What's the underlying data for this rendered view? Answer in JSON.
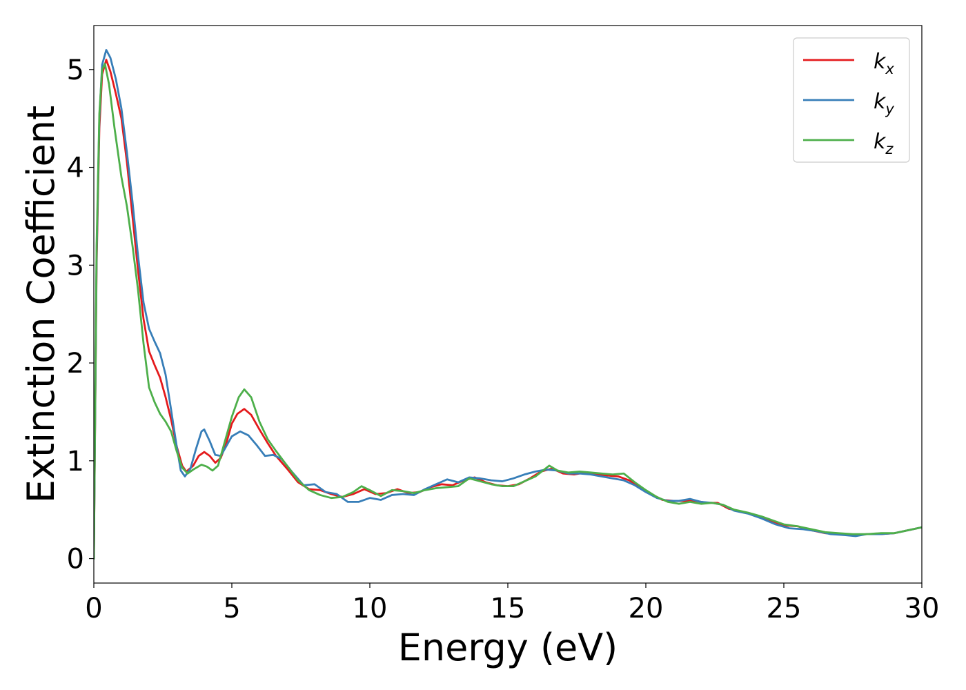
{
  "chart_data": {
    "type": "line",
    "title": "",
    "xlabel": "Energy (eV)",
    "ylabel": "Extinction Coefficient",
    "xlim": [
      0,
      30
    ],
    "ylim": [
      -0.25,
      5.45
    ],
    "xticks": [
      0,
      5,
      10,
      15,
      20,
      25,
      30
    ],
    "xtick_labels": [
      "0",
      "5",
      "10",
      "15",
      "20",
      "25",
      "30"
    ],
    "yticks": [
      0,
      1,
      2,
      3,
      4,
      5
    ],
    "ytick_labels": [
      "0",
      "1",
      "2",
      "3",
      "4",
      "5"
    ],
    "grid": false,
    "legend": {
      "position": "top-right"
    },
    "series": [
      {
        "name": "k",
        "subscript": "x",
        "color": "#e41a1c",
        "points": [
          [
            0,
            0
          ],
          [
            0.1,
            3.0
          ],
          [
            0.2,
            4.4
          ],
          [
            0.3,
            4.95
          ],
          [
            0.45,
            5.1
          ],
          [
            0.6,
            4.98
          ],
          [
            0.8,
            4.75
          ],
          [
            1.0,
            4.5
          ],
          [
            1.2,
            4.05
          ],
          [
            1.4,
            3.5
          ],
          [
            1.6,
            2.95
          ],
          [
            1.8,
            2.45
          ],
          [
            2.0,
            2.12
          ],
          [
            2.2,
            1.98
          ],
          [
            2.4,
            1.85
          ],
          [
            2.6,
            1.65
          ],
          [
            2.8,
            1.42
          ],
          [
            3.0,
            1.15
          ],
          [
            3.2,
            0.95
          ],
          [
            3.35,
            0.89
          ],
          [
            3.6,
            0.95
          ],
          [
            3.8,
            1.05
          ],
          [
            4.0,
            1.09
          ],
          [
            4.2,
            1.05
          ],
          [
            4.4,
            0.98
          ],
          [
            4.6,
            1.03
          ],
          [
            4.8,
            1.18
          ],
          [
            5.0,
            1.38
          ],
          [
            5.2,
            1.48
          ],
          [
            5.45,
            1.53
          ],
          [
            5.7,
            1.47
          ],
          [
            6.0,
            1.32
          ],
          [
            6.3,
            1.18
          ],
          [
            6.6,
            1.05
          ],
          [
            7.0,
            0.92
          ],
          [
            7.4,
            0.78
          ],
          [
            7.8,
            0.71
          ],
          [
            8.2,
            0.7
          ],
          [
            8.6,
            0.66
          ],
          [
            9.0,
            0.63
          ],
          [
            9.4,
            0.66
          ],
          [
            9.8,
            0.71
          ],
          [
            10.2,
            0.66
          ],
          [
            10.6,
            0.67
          ],
          [
            11.0,
            0.71
          ],
          [
            11.4,
            0.67
          ],
          [
            11.8,
            0.68
          ],
          [
            12.2,
            0.73
          ],
          [
            12.6,
            0.76
          ],
          [
            13.0,
            0.75
          ],
          [
            13.4,
            0.8
          ],
          [
            13.8,
            0.83
          ],
          [
            14.2,
            0.78
          ],
          [
            14.6,
            0.75
          ],
          [
            15.0,
            0.74
          ],
          [
            15.4,
            0.76
          ],
          [
            15.8,
            0.82
          ],
          [
            16.2,
            0.89
          ],
          [
            16.6,
            0.92
          ],
          [
            17.0,
            0.87
          ],
          [
            17.4,
            0.86
          ],
          [
            17.8,
            0.88
          ],
          [
            18.2,
            0.86
          ],
          [
            18.6,
            0.85
          ],
          [
            19.0,
            0.84
          ],
          [
            19.4,
            0.8
          ],
          [
            19.8,
            0.73
          ],
          [
            20.2,
            0.66
          ],
          [
            20.6,
            0.6
          ],
          [
            21.0,
            0.59
          ],
          [
            21.4,
            0.59
          ],
          [
            21.8,
            0.59
          ],
          [
            22.2,
            0.57
          ],
          [
            22.6,
            0.57
          ],
          [
            23.0,
            0.51
          ],
          [
            23.5,
            0.48
          ],
          [
            24.0,
            0.44
          ],
          [
            24.5,
            0.39
          ],
          [
            25.0,
            0.34
          ],
          [
            25.5,
            0.33
          ],
          [
            26.0,
            0.29
          ],
          [
            26.5,
            0.26
          ],
          [
            27.0,
            0.25
          ],
          [
            27.5,
            0.24
          ],
          [
            28.0,
            0.25
          ],
          [
            28.5,
            0.25
          ],
          [
            29.0,
            0.26
          ],
          [
            29.5,
            0.29
          ],
          [
            30.0,
            0.32
          ]
        ]
      },
      {
        "name": "k",
        "subscript": "y",
        "color": "#377eb8",
        "points": [
          [
            0,
            0
          ],
          [
            0.1,
            3.1
          ],
          [
            0.2,
            4.5
          ],
          [
            0.3,
            5.05
          ],
          [
            0.45,
            5.2
          ],
          [
            0.6,
            5.12
          ],
          [
            0.8,
            4.9
          ],
          [
            1.0,
            4.6
          ],
          [
            1.2,
            4.15
          ],
          [
            1.4,
            3.65
          ],
          [
            1.6,
            3.1
          ],
          [
            1.8,
            2.62
          ],
          [
            2.0,
            2.35
          ],
          [
            2.2,
            2.22
          ],
          [
            2.4,
            2.1
          ],
          [
            2.6,
            1.88
          ],
          [
            2.8,
            1.52
          ],
          [
            3.0,
            1.15
          ],
          [
            3.15,
            0.9
          ],
          [
            3.3,
            0.84
          ],
          [
            3.5,
            0.92
          ],
          [
            3.7,
            1.12
          ],
          [
            3.9,
            1.3
          ],
          [
            4.0,
            1.32
          ],
          [
            4.2,
            1.2
          ],
          [
            4.4,
            1.06
          ],
          [
            4.6,
            1.05
          ],
          [
            4.8,
            1.15
          ],
          [
            5.0,
            1.25
          ],
          [
            5.3,
            1.3
          ],
          [
            5.6,
            1.26
          ],
          [
            5.9,
            1.16
          ],
          [
            6.2,
            1.05
          ],
          [
            6.5,
            1.06
          ],
          [
            6.8,
            1.02
          ],
          [
            7.2,
            0.88
          ],
          [
            7.6,
            0.75
          ],
          [
            8.0,
            0.76
          ],
          [
            8.4,
            0.68
          ],
          [
            8.8,
            0.66
          ],
          [
            9.2,
            0.58
          ],
          [
            9.6,
            0.58
          ],
          [
            10.0,
            0.62
          ],
          [
            10.4,
            0.6
          ],
          [
            10.8,
            0.65
          ],
          [
            11.2,
            0.66
          ],
          [
            11.6,
            0.65
          ],
          [
            12.0,
            0.71
          ],
          [
            12.4,
            0.76
          ],
          [
            12.8,
            0.81
          ],
          [
            13.2,
            0.78
          ],
          [
            13.6,
            0.83
          ],
          [
            14.0,
            0.82
          ],
          [
            14.4,
            0.8
          ],
          [
            14.8,
            0.79
          ],
          [
            15.2,
            0.82
          ],
          [
            15.6,
            0.86
          ],
          [
            16.0,
            0.89
          ],
          [
            16.4,
            0.91
          ],
          [
            16.8,
            0.9
          ],
          [
            17.2,
            0.87
          ],
          [
            17.6,
            0.87
          ],
          [
            18.0,
            0.86
          ],
          [
            18.4,
            0.84
          ],
          [
            18.8,
            0.82
          ],
          [
            19.2,
            0.8
          ],
          [
            19.6,
            0.75
          ],
          [
            20.0,
            0.68
          ],
          [
            20.4,
            0.62
          ],
          [
            20.8,
            0.59
          ],
          [
            21.2,
            0.59
          ],
          [
            21.6,
            0.61
          ],
          [
            22.0,
            0.58
          ],
          [
            22.4,
            0.57
          ],
          [
            22.8,
            0.55
          ],
          [
            23.2,
            0.49
          ],
          [
            23.7,
            0.46
          ],
          [
            24.2,
            0.41
          ],
          [
            24.7,
            0.35
          ],
          [
            25.2,
            0.31
          ],
          [
            25.7,
            0.3
          ],
          [
            26.2,
            0.28
          ],
          [
            26.7,
            0.25
          ],
          [
            27.2,
            0.24
          ],
          [
            27.6,
            0.23
          ],
          [
            28.0,
            0.25
          ],
          [
            28.5,
            0.25
          ],
          [
            29.0,
            0.26
          ],
          [
            29.5,
            0.29
          ],
          [
            30.0,
            0.32
          ]
        ]
      },
      {
        "name": "k",
        "subscript": "z",
        "color": "#4daf4a",
        "points": [
          [
            0,
            0
          ],
          [
            0.1,
            3.2
          ],
          [
            0.2,
            4.55
          ],
          [
            0.3,
            5.0
          ],
          [
            0.4,
            5.06
          ],
          [
            0.55,
            4.85
          ],
          [
            0.75,
            4.4
          ],
          [
            1.0,
            3.9
          ],
          [
            1.2,
            3.6
          ],
          [
            1.4,
            3.2
          ],
          [
            1.6,
            2.75
          ],
          [
            1.8,
            2.2
          ],
          [
            2.0,
            1.75
          ],
          [
            2.2,
            1.6
          ],
          [
            2.4,
            1.48
          ],
          [
            2.6,
            1.4
          ],
          [
            2.8,
            1.3
          ],
          [
            3.0,
            1.1
          ],
          [
            3.2,
            0.93
          ],
          [
            3.4,
            0.87
          ],
          [
            3.6,
            0.91
          ],
          [
            3.9,
            0.96
          ],
          [
            4.1,
            0.94
          ],
          [
            4.3,
            0.9
          ],
          [
            4.5,
            0.95
          ],
          [
            4.7,
            1.15
          ],
          [
            5.0,
            1.45
          ],
          [
            5.25,
            1.65
          ],
          [
            5.45,
            1.73
          ],
          [
            5.7,
            1.65
          ],
          [
            6.0,
            1.4
          ],
          [
            6.3,
            1.22
          ],
          [
            6.6,
            1.1
          ],
          [
            7.0,
            0.95
          ],
          [
            7.4,
            0.8
          ],
          [
            7.8,
            0.7
          ],
          [
            8.2,
            0.65
          ],
          [
            8.6,
            0.62
          ],
          [
            9.0,
            0.63
          ],
          [
            9.4,
            0.68
          ],
          [
            9.7,
            0.74
          ],
          [
            10.0,
            0.7
          ],
          [
            10.4,
            0.64
          ],
          [
            10.8,
            0.7
          ],
          [
            11.2,
            0.69
          ],
          [
            11.6,
            0.67
          ],
          [
            12.0,
            0.7
          ],
          [
            12.4,
            0.72
          ],
          [
            12.8,
            0.73
          ],
          [
            13.2,
            0.74
          ],
          [
            13.6,
            0.82
          ],
          [
            14.0,
            0.79
          ],
          [
            14.4,
            0.76
          ],
          [
            14.8,
            0.74
          ],
          [
            15.2,
            0.74
          ],
          [
            15.6,
            0.79
          ],
          [
            16.0,
            0.84
          ],
          [
            16.5,
            0.95
          ],
          [
            16.8,
            0.9
          ],
          [
            17.2,
            0.88
          ],
          [
            17.6,
            0.89
          ],
          [
            18.0,
            0.88
          ],
          [
            18.4,
            0.87
          ],
          [
            18.8,
            0.86
          ],
          [
            19.2,
            0.87
          ],
          [
            19.6,
            0.78
          ],
          [
            20.0,
            0.7
          ],
          [
            20.4,
            0.63
          ],
          [
            20.8,
            0.58
          ],
          [
            21.2,
            0.56
          ],
          [
            21.6,
            0.58
          ],
          [
            22.0,
            0.56
          ],
          [
            22.4,
            0.57
          ],
          [
            22.8,
            0.55
          ],
          [
            23.2,
            0.5
          ],
          [
            23.7,
            0.47
          ],
          [
            24.2,
            0.43
          ],
          [
            24.7,
            0.38
          ],
          [
            25.0,
            0.35
          ],
          [
            25.5,
            0.33
          ],
          [
            26.0,
            0.3
          ],
          [
            26.5,
            0.27
          ],
          [
            27.0,
            0.26
          ],
          [
            27.5,
            0.25
          ],
          [
            28.0,
            0.25
          ],
          [
            28.5,
            0.26
          ],
          [
            29.0,
            0.26
          ],
          [
            29.5,
            0.29
          ],
          [
            30.0,
            0.32
          ]
        ]
      }
    ]
  }
}
